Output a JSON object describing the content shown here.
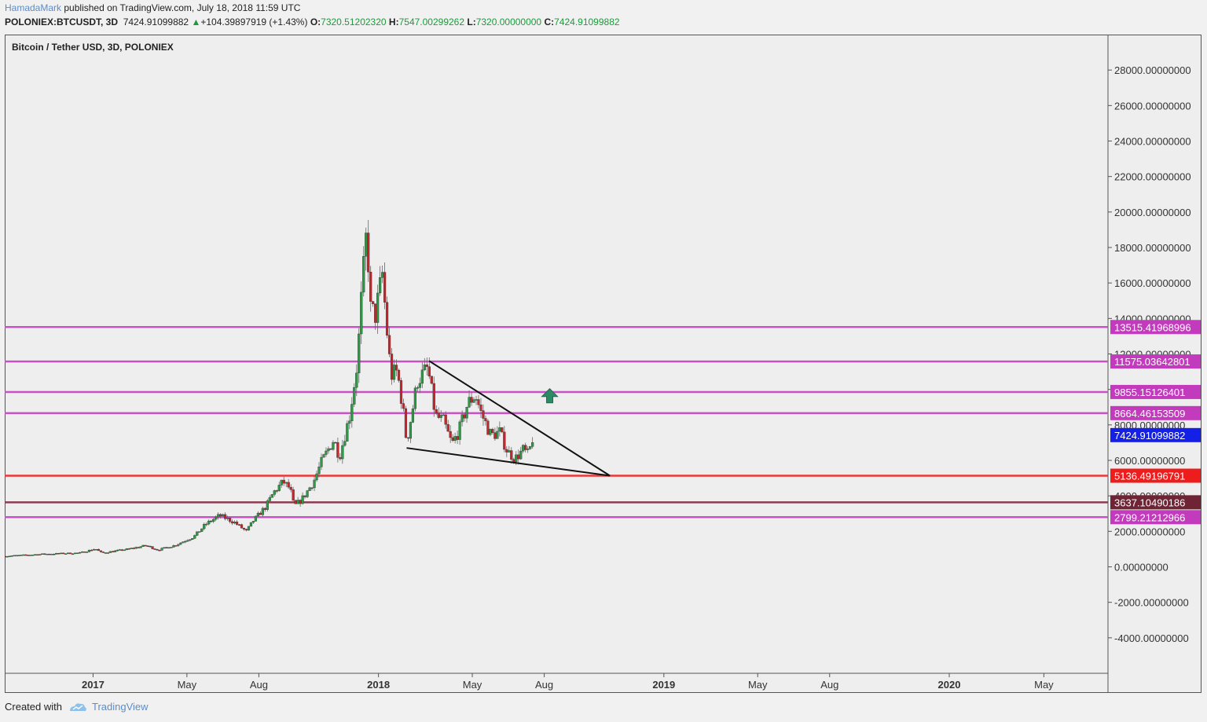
{
  "header": {
    "author": "HamadaMark",
    "published": "published on TradingView.com, July 18, 2018 11:59 UTC"
  },
  "infobar": {
    "symbol": "POLONIEX:BTCUSDT, 3D",
    "last": "7424.91099882",
    "change": "+104.39897919 (+1.43%)",
    "o_label": "O:",
    "o": "7320.51202320",
    "h_label": "H:",
    "h": "7547.00299262",
    "l_label": "L:",
    "l": "7320.00000000",
    "c_label": "C:",
    "c": "7424.91099882"
  },
  "footer": {
    "created": "Created with",
    "brand": "TradingView"
  },
  "colors": {
    "up": "#2d9a45",
    "down": "#c2282b",
    "magenta": "#c852c5",
    "red": "#ee3535",
    "maroon": "#8a3c4e",
    "blue": "#1520e6"
  },
  "chart_data": {
    "type": "candlestick",
    "title": "Bitcoin / Tether USD, 3D, POLONIEX",
    "ylim": [
      -6000,
      30000
    ],
    "y_ticks": [
      {
        "v": 28000,
        "label": "28000.00000000"
      },
      {
        "v": 26000,
        "label": "26000.00000000"
      },
      {
        "v": 24000,
        "label": "24000.00000000"
      },
      {
        "v": 22000,
        "label": "22000.00000000"
      },
      {
        "v": 20000,
        "label": "20000.00000000"
      },
      {
        "v": 18000,
        "label": "18000.00000000"
      },
      {
        "v": 16000,
        "label": "16000.00000000"
      },
      {
        "v": 14000,
        "label": "14000.00000000"
      },
      {
        "v": 12000,
        "label": "12000.00000000"
      },
      {
        "v": 10000,
        "label": "10000.00000000"
      },
      {
        "v": 8000,
        "label": "8000.00000000"
      },
      {
        "v": 6000,
        "label": "6000.00000000"
      },
      {
        "v": 4000,
        "label": "4000.00000000"
      },
      {
        "v": 2000,
        "label": "2000.00000000"
      },
      {
        "v": 0,
        "label": "0.00000000"
      },
      {
        "v": -2000,
        "label": "-2000.00000000"
      },
      {
        "v": -4000,
        "label": "-4000.00000000"
      }
    ],
    "x_domain": [
      "2016-09-10",
      "2020-07-22"
    ],
    "x_ticks": [
      {
        "date": "2017-01-01",
        "label": "2017",
        "bold": true
      },
      {
        "date": "2017-05-01",
        "label": "May",
        "bold": false
      },
      {
        "date": "2017-08-01",
        "label": "Aug",
        "bold": false
      },
      {
        "date": "2018-01-01",
        "label": "2018",
        "bold": true
      },
      {
        "date": "2018-05-01",
        "label": "May",
        "bold": false
      },
      {
        "date": "2018-08-01",
        "label": "Aug",
        "bold": false
      },
      {
        "date": "2019-01-01",
        "label": "2019",
        "bold": true
      },
      {
        "date": "2019-05-01",
        "label": "May",
        "bold": false
      },
      {
        "date": "2019-08-01",
        "label": "Aug",
        "bold": false
      },
      {
        "date": "2020-01-01",
        "label": "2020",
        "bold": true
      },
      {
        "date": "2020-05-01",
        "label": "May",
        "bold": false
      }
    ],
    "levels": [
      {
        "v": 13515.41968996,
        "label": "13515.41968996",
        "color": "#c852c5",
        "box": "#c33bbd"
      },
      {
        "v": 11575.03642801,
        "label": "11575.03642801",
        "color": "#c852c5",
        "box": "#c33bbd"
      },
      {
        "v": 9855.15126401,
        "label": "9855.15126401",
        "color": "#c852c5",
        "box": "#c33bbd"
      },
      {
        "v": 8664.46153509,
        "label": "8664.46153509",
        "color": "#c852c5",
        "box": "#c33bbd"
      },
      {
        "v": 5136.49196791,
        "label": "5136.49196791",
        "color": "#ee3535",
        "box": "#ee1d1d"
      },
      {
        "v": 3637.10490186,
        "label": "3637.10490186",
        "color": "#8a3c4e",
        "box": "#6e2434"
      },
      {
        "v": 2799.21212966,
        "label": "2799.21212966",
        "color": "#c852c5",
        "box": "#c33bbd"
      }
    ],
    "last_price": {
      "v": 7424.91099882,
      "label": "7424.91099882",
      "box": "#1520e6"
    },
    "price_path": [
      [
        "2016-09-10",
        600
      ],
      [
        "2016-11-01",
        720
      ],
      [
        "2016-12-15",
        780
      ],
      [
        "2017-01-04",
        1020
      ],
      [
        "2017-01-12",
        780
      ],
      [
        "2017-02-15",
        1000
      ],
      [
        "2017-03-10",
        1200
      ],
      [
        "2017-03-25",
        950
      ],
      [
        "2017-04-15",
        1200
      ],
      [
        "2017-05-10",
        1700
      ],
      [
        "2017-05-25",
        2400
      ],
      [
        "2017-06-12",
        2900
      ],
      [
        "2017-07-01",
        2500
      ],
      [
        "2017-07-16",
        2000
      ],
      [
        "2017-07-25",
        2600
      ],
      [
        "2017-08-10",
        3400
      ],
      [
        "2017-08-20",
        4200
      ],
      [
        "2017-09-01",
        4800
      ],
      [
        "2017-09-10",
        4400
      ],
      [
        "2017-09-15",
        3400
      ],
      [
        "2017-09-25",
        3800
      ],
      [
        "2017-10-10",
        4800
      ],
      [
        "2017-10-20",
        5900
      ],
      [
        "2017-11-05",
        7200
      ],
      [
        "2017-11-12",
        6200
      ],
      [
        "2017-11-25",
        8500
      ],
      [
        "2017-12-05",
        11500
      ],
      [
        "2017-12-10",
        15000
      ],
      [
        "2017-12-17",
        19000
      ],
      [
        "2017-12-22",
        14500
      ],
      [
        "2017-12-28",
        14200
      ],
      [
        "2018-01-06",
        16500
      ],
      [
        "2018-01-12",
        13200
      ],
      [
        "2018-01-17",
        10800
      ],
      [
        "2018-01-25",
        11000
      ],
      [
        "2018-02-01",
        9000
      ],
      [
        "2018-02-06",
        7000
      ],
      [
        "2018-02-12",
        8500
      ],
      [
        "2018-02-20",
        10500
      ],
      [
        "2018-03-05",
        11200
      ],
      [
        "2018-03-15",
        8500
      ],
      [
        "2018-03-25",
        8200
      ],
      [
        "2018-04-05",
        6900
      ],
      [
        "2018-04-15",
        7800
      ],
      [
        "2018-04-25",
        9200
      ],
      [
        "2018-05-05",
        9700
      ],
      [
        "2018-05-12",
        8700
      ],
      [
        "2018-05-25",
        7400
      ],
      [
        "2018-06-05",
        7600
      ],
      [
        "2018-06-15",
        6500
      ],
      [
        "2018-06-25",
        6100
      ],
      [
        "2018-07-05",
        6600
      ],
      [
        "2018-07-12",
        6300
      ],
      [
        "2018-07-18",
        7424
      ]
    ],
    "trendlines": [
      {
        "from": [
          "2018-03-07",
          11600
        ],
        "to": [
          "2018-10-24",
          5136
        ]
      },
      {
        "from": [
          "2018-02-06",
          6700
        ],
        "to": [
          "2018-10-24",
          5136
        ]
      }
    ],
    "arrow": {
      "date": "2018-08-08",
      "v": 9600
    }
  }
}
